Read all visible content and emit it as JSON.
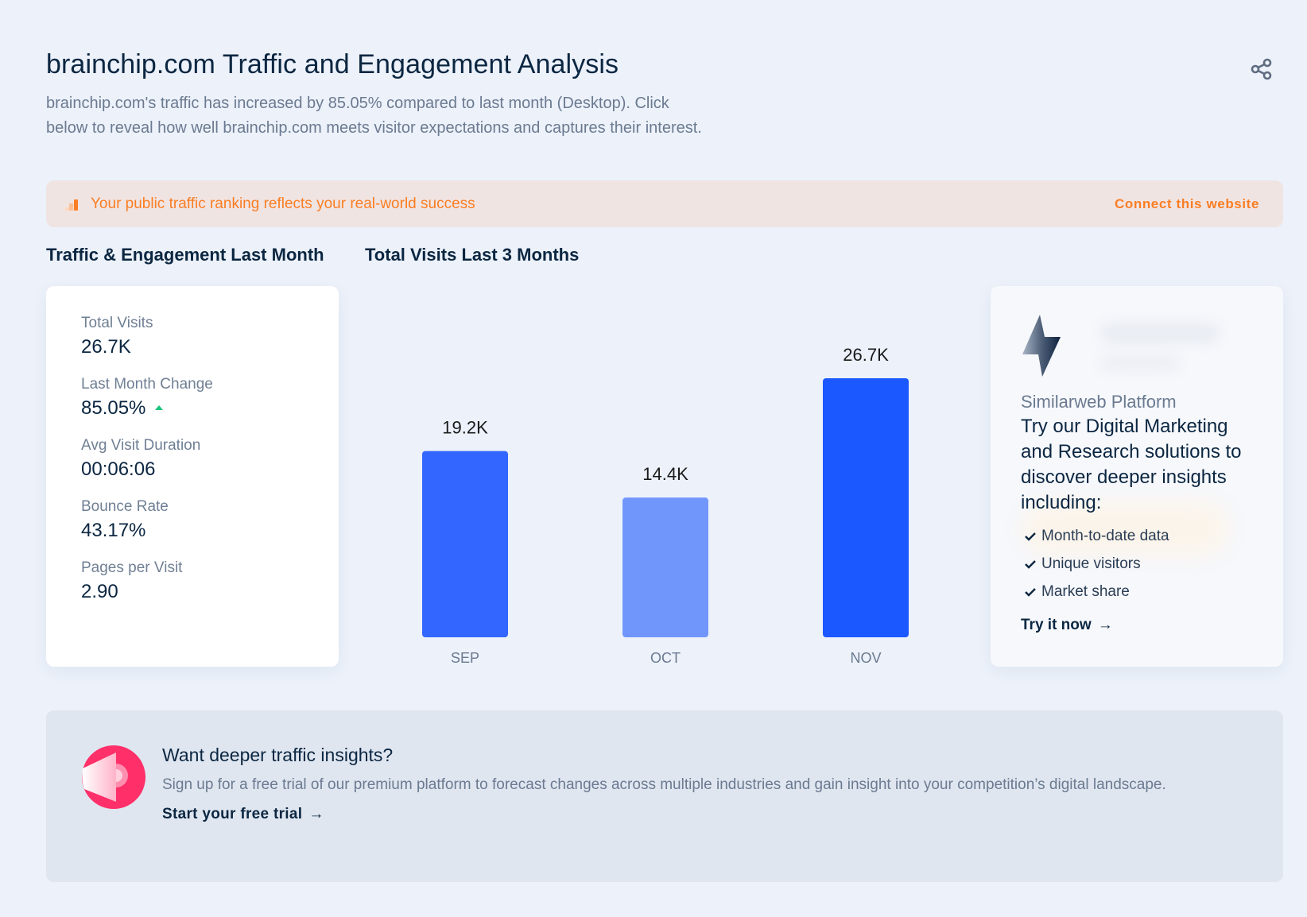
{
  "header": {
    "title": "brainchip.com Traffic and Engagement Analysis",
    "description": "brainchip.com's traffic has increased by 85.05% compared to last month (Desktop). Click below to reveal how well brainchip.com meets visitor expectations and captures their interest.",
    "share_icon": "share-icon"
  },
  "banner": {
    "icon": "ranking-bars-icon",
    "text": "Your public traffic ranking reflects your real-world success",
    "link": "Connect this website",
    "color": "#fa7e23"
  },
  "sections": {
    "engagement_title": "Traffic & Engagement Last Month",
    "visits_title": "Total Visits Last 3 Months"
  },
  "stats": [
    {
      "label": "Total Visits",
      "value": "26.7K"
    },
    {
      "label": "Last Month Change",
      "value": "85.05%",
      "trend": "up"
    },
    {
      "label": "Avg Visit Duration",
      "value": "00:06:06"
    },
    {
      "label": "Bounce Rate",
      "value": "43.17%"
    },
    {
      "label": "Pages per Visit",
      "value": "2.90"
    }
  ],
  "chart_data": {
    "type": "bar",
    "title": "Total Visits Last 3 Months",
    "categories": [
      "SEP",
      "OCT",
      "NOV"
    ],
    "values": [
      19200,
      14400,
      26700
    ],
    "labels": [
      "19.2K",
      "14.4K",
      "26.7K"
    ],
    "colors": [
      "#3366ff",
      "#7096fb",
      "#1c58ff"
    ],
    "xlabel": "",
    "ylabel": "",
    "ylim": [
      0,
      26700
    ],
    "grid": false
  },
  "promo": {
    "icon": "lightning-bolt-icon",
    "kicker": "Similarweb Platform",
    "headline": "Try our Digital Marketing and Research solutions to discover deeper insights including:",
    "features": [
      "Month-to-date data",
      "Unique visitors",
      "Market share"
    ],
    "cta": "Try it now",
    "cta_arrow": "→"
  },
  "bottom": {
    "icon": "megaphone-icon",
    "title": "Want deeper traffic insights?",
    "description": "Sign up for a free trial of our premium platform to forecast changes across multiple industries and gain insight into your competition’s digital landscape.",
    "cta": "Start your free trial",
    "cta_arrow": "→"
  }
}
